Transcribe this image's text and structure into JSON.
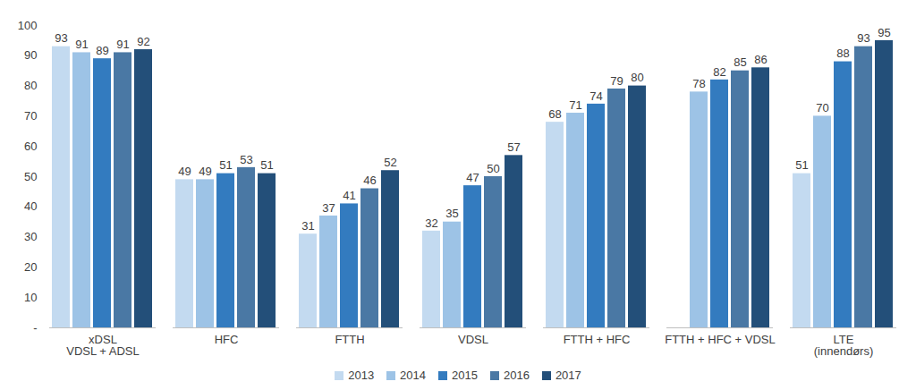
{
  "chart_data": {
    "type": "bar",
    "categories": [
      "xDSL\nVDSL + ADSL",
      "HFC",
      "FTTH",
      "VDSL",
      "FTTH + HFC",
      "FTTH + HFC + VDSL",
      "LTE\n(innendørs)"
    ],
    "series": [
      {
        "name": "2013",
        "color": "#c3daf0",
        "values": [
          93,
          49,
          31,
          32,
          68,
          null,
          51
        ]
      },
      {
        "name": "2014",
        "color": "#9dc3e6",
        "values": [
          91,
          49,
          37,
          35,
          71,
          78,
          70
        ]
      },
      {
        "name": "2015",
        "color": "#337bbf",
        "values": [
          89,
          51,
          41,
          47,
          74,
          82,
          88
        ]
      },
      {
        "name": "2016",
        "color": "#4a78a4",
        "values": [
          91,
          53,
          46,
          50,
          79,
          85,
          93
        ]
      },
      {
        "name": "2017",
        "color": "#234f79",
        "values": [
          92,
          51,
          52,
          57,
          80,
          86,
          95
        ]
      }
    ],
    "ylim": [
      0,
      100
    ],
    "yticks": [
      {
        "value": 0,
        "label": "-"
      },
      10,
      20,
      30,
      40,
      50,
      60,
      70,
      80,
      90,
      100
    ],
    "grid": false,
    "legend": "bottom",
    "data_labels": true
  }
}
